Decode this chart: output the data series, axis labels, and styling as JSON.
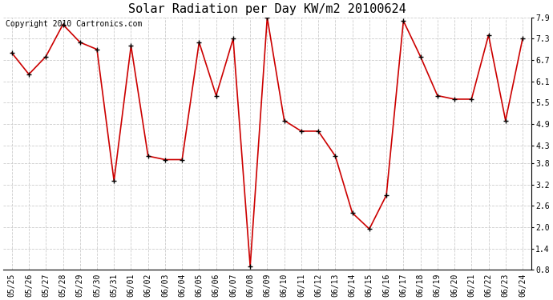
{
  "title": "Solar Radiation per Day KW/m2 20100624",
  "copyright": "Copyright 2010 Cartronics.com",
  "dates": [
    "05/25",
    "05/26",
    "05/27",
    "05/28",
    "05/29",
    "05/30",
    "05/31",
    "06/01",
    "06/02",
    "06/03",
    "06/04",
    "06/05",
    "06/06",
    "06/07",
    "06/08",
    "06/09",
    "06/10",
    "06/11",
    "06/12",
    "06/13",
    "06/14",
    "06/15",
    "06/16",
    "06/17",
    "06/18",
    "06/19",
    "06/20",
    "06/21",
    "06/22",
    "06/23",
    "06/24"
  ],
  "values": [
    6.9,
    6.3,
    6.8,
    7.7,
    7.2,
    7.0,
    3.3,
    7.1,
    4.0,
    3.9,
    3.9,
    7.2,
    5.7,
    7.3,
    0.9,
    7.9,
    5.0,
    4.7,
    4.7,
    4.0,
    2.4,
    1.95,
    2.9,
    7.8,
    6.8,
    5.7,
    5.6,
    5.6,
    7.4,
    5.0,
    7.3
  ],
  "line_color": "#cc0000",
  "marker_color": "#000000",
  "bg_color": "#ffffff",
  "grid_color": "#cccccc",
  "ylim": [
    0.8,
    7.9
  ],
  "yticks": [
    0.8,
    1.4,
    2.0,
    2.6,
    3.2,
    3.8,
    4.3,
    4.9,
    5.5,
    6.1,
    6.7,
    7.3,
    7.9
  ],
  "title_fontsize": 11,
  "copyright_fontsize": 7,
  "tick_fontsize": 7
}
